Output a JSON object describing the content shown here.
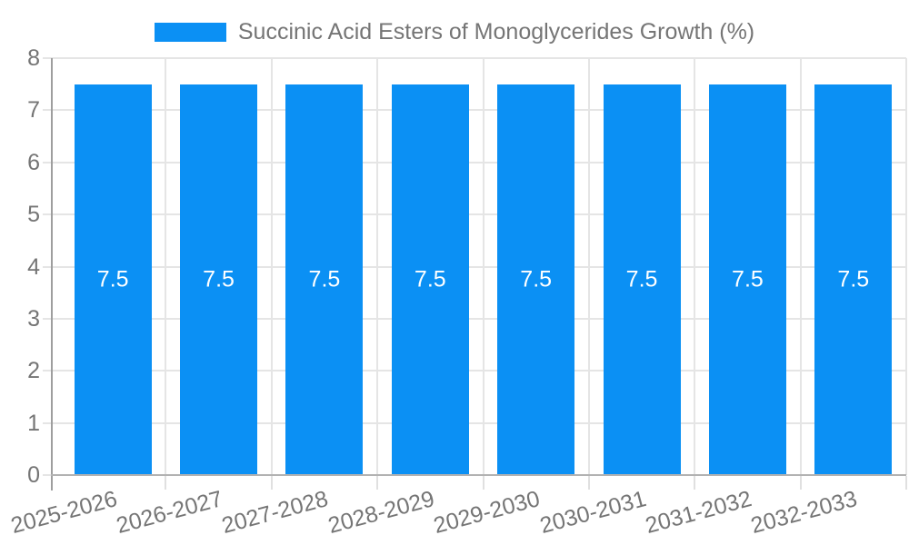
{
  "legend": {
    "label": "Succinic Acid Esters of Monoglycerides Growth (%)"
  },
  "chart_data": {
    "type": "bar",
    "title": "",
    "categories": [
      "2025-2026",
      "2026-2027",
      "2027-2028",
      "2028-2029",
      "2029-2030",
      "2030-2031",
      "2031-2032",
      "2032-2033"
    ],
    "series": [
      {
        "name": "Succinic Acid Esters of Monoglycerides Growth (%)",
        "values": [
          7.5,
          7.5,
          7.5,
          7.5,
          7.5,
          7.5,
          7.5,
          7.5
        ]
      }
    ],
    "bar_labels": [
      "7.5",
      "7.5",
      "7.5",
      "7.5",
      "7.5",
      "7.5",
      "7.5",
      "7.5"
    ],
    "xlabel": "",
    "ylabel": "",
    "ylim": [
      0,
      8
    ],
    "yticks": [
      0,
      1,
      2,
      3,
      4,
      5,
      6,
      7,
      8
    ],
    "grid": true,
    "legend_position": "top-center",
    "x_label_rotation_deg": -15
  },
  "colors": {
    "bar": "#0b90f4",
    "bar_label": "#ffffff",
    "text": "#757575",
    "grid": "#e5e5e5",
    "tick": "#e0e0e0",
    "axis_y": "#9e9e9e",
    "axis_x": "#b2b2b2",
    "background": "#ffffff"
  }
}
